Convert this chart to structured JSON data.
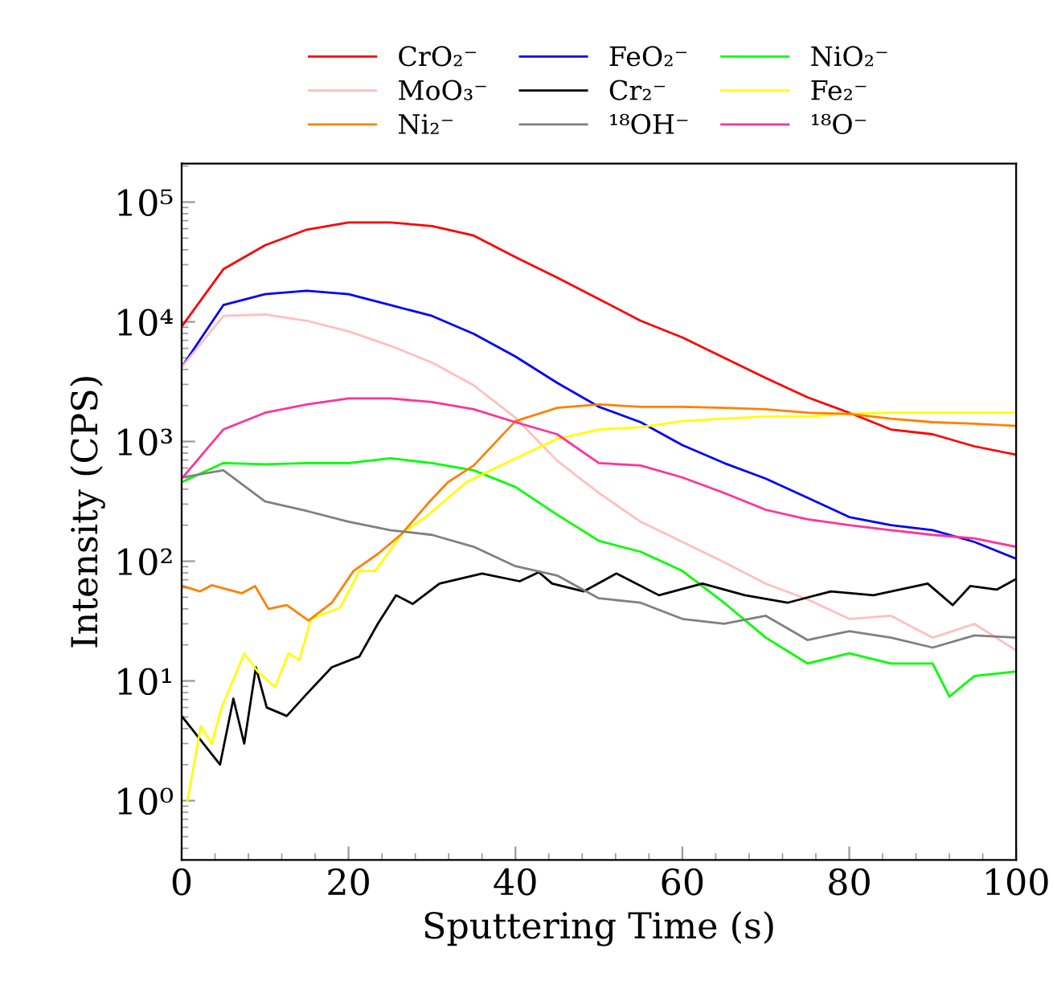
{
  "chart_data": {
    "type": "line",
    "xlabel": "Sputtering Time (s)",
    "ylabel": "Intensity (CPS)",
    "log": "y",
    "xlim": [
      0,
      100
    ],
    "xticks": [
      0,
      20,
      40,
      60,
      80,
      100
    ],
    "ylim": [
      0.32,
      210000
    ],
    "yticks": [
      {
        "value": 1,
        "label": "10⁰"
      },
      {
        "value": 10,
        "label": "10¹"
      },
      {
        "value": 100,
        "label": "10²"
      },
      {
        "value": 1000,
        "label": "10³"
      },
      {
        "value": 10000,
        "label": "10⁴"
      },
      {
        "value": 100000,
        "label": "10⁵"
      }
    ],
    "grid": false,
    "legend": "top",
    "marker": "none",
    "line_style": "solid",
    "x": [
      0,
      5,
      10,
      15,
      20,
      25,
      30,
      35,
      40,
      45,
      50,
      55,
      60,
      65,
      70,
      75,
      80,
      85,
      90,
      95,
      100
    ],
    "series": [
      {
        "name": "CrO₂⁻",
        "color": "#ff0000",
        "values": [
          9120,
          27500,
          43600,
          58900,
          67600,
          67600,
          63100,
          52500,
          34700,
          23400,
          15500,
          10200,
          7410,
          5010,
          3390,
          2340,
          1740,
          1260,
          1150,
          912,
          776
        ]
      },
      {
        "name": "FeO₂⁻",
        "color": "#0000ff",
        "values": [
          4170,
          13800,
          17000,
          18200,
          17000,
          13800,
          11200,
          7940,
          5130,
          3090,
          1950,
          1450,
          933,
          661,
          490,
          339,
          234,
          200,
          182,
          145,
          105
        ]
      },
      {
        "name": "NiO₂⁻",
        "color": "#00ff00",
        "x": [
          0,
          5,
          10,
          15,
          20,
          25,
          30,
          35,
          40,
          45,
          50,
          55,
          60,
          65,
          70,
          75,
          80,
          85,
          90,
          92,
          95,
          100
        ],
        "values": [
          457,
          661,
          646,
          661,
          661,
          724,
          661,
          575,
          417,
          245,
          148,
          120,
          83,
          45,
          23,
          14,
          17,
          14,
          14,
          7.4,
          11,
          12
        ]
      },
      {
        "name": "MoO₃⁻",
        "color": "#ffbfbf",
        "values": [
          4170,
          11200,
          11500,
          10200,
          8320,
          6310,
          4570,
          2950,
          1580,
          692,
          372,
          214,
          145,
          98,
          65,
          48,
          33,
          35,
          23,
          30,
          18
        ]
      },
      {
        "name": "Cr₂⁻",
        "color": "#000000",
        "x": [
          0,
          4.6,
          6.2,
          7.5,
          8.9,
          10.2,
          12.6,
          15,
          18,
          21.3,
          23.5,
          25.7,
          27.7,
          30.9,
          36,
          40.5,
          42.8,
          44.4,
          48.2,
          52.1,
          57.2,
          62.4,
          67.5,
          72.6,
          77.8,
          82.9,
          89.4,
          92.4,
          94.5,
          97.7,
          100
        ],
        "values": [
          5.1,
          2.0,
          7.1,
          3.0,
          13,
          6.0,
          5.1,
          7.8,
          13,
          16,
          30,
          52,
          44,
          65,
          79,
          68,
          81,
          65,
          56,
          79,
          52,
          65,
          52,
          45,
          56,
          52,
          65,
          43,
          62,
          58,
          71
        ]
      },
      {
        "name": "Fe₂⁻",
        "color": "#ffff00",
        "x": [
          0.7,
          2.3,
          3.6,
          4.8,
          7.5,
          9.1,
          11.2,
          12.8,
          14.1,
          15.5,
          19,
          21.3,
          23.2,
          26.4,
          29.6,
          34.1,
          40,
          45,
          50,
          55,
          60,
          65,
          70,
          75,
          80,
          85,
          90,
          95,
          100
        ],
        "values": [
          1.0,
          4.2,
          3.0,
          6.0,
          17,
          12,
          8.9,
          17,
          15,
          33,
          41,
          83,
          83,
          170,
          245,
          457,
          724,
          1050,
          1260,
          1320,
          1480,
          1550,
          1620,
          1620,
          1700,
          1740,
          1740,
          1740,
          1740
        ]
      },
      {
        "name": "Ni₂⁻",
        "color": "#ff8000",
        "x": [
          0.2,
          2.2,
          3.6,
          7.2,
          8.8,
          10.4,
          12.6,
          15.2,
          18,
          20.6,
          23.5,
          26.4,
          29.6,
          31.9,
          35,
          40,
          45,
          50,
          55,
          60,
          65,
          70,
          75,
          80,
          85,
          90,
          95,
          100
        ],
        "values": [
          62,
          56,
          63,
          54,
          62,
          40,
          43,
          32,
          45,
          83,
          115,
          170,
          309,
          457,
          631,
          1480,
          1910,
          2040,
          1950,
          1950,
          1910,
          1860,
          1740,
          1700,
          1550,
          1450,
          1410,
          1350
        ]
      },
      {
        "name": "¹⁸OH⁻",
        "color": "#808080",
        "values": [
          501,
          575,
          316,
          263,
          214,
          182,
          166,
          132,
          91,
          76,
          49,
          45,
          33,
          30,
          35,
          22,
          26,
          23,
          19,
          24,
          23
        ]
      },
      {
        "name": "¹⁸O⁻",
        "color": "#ff3399",
        "values": [
          490,
          1260,
          1740,
          2040,
          2290,
          2290,
          2140,
          1860,
          1450,
          1150,
          661,
          631,
          501,
          372,
          269,
          224,
          200,
          182,
          166,
          155,
          132
        ]
      }
    ]
  }
}
